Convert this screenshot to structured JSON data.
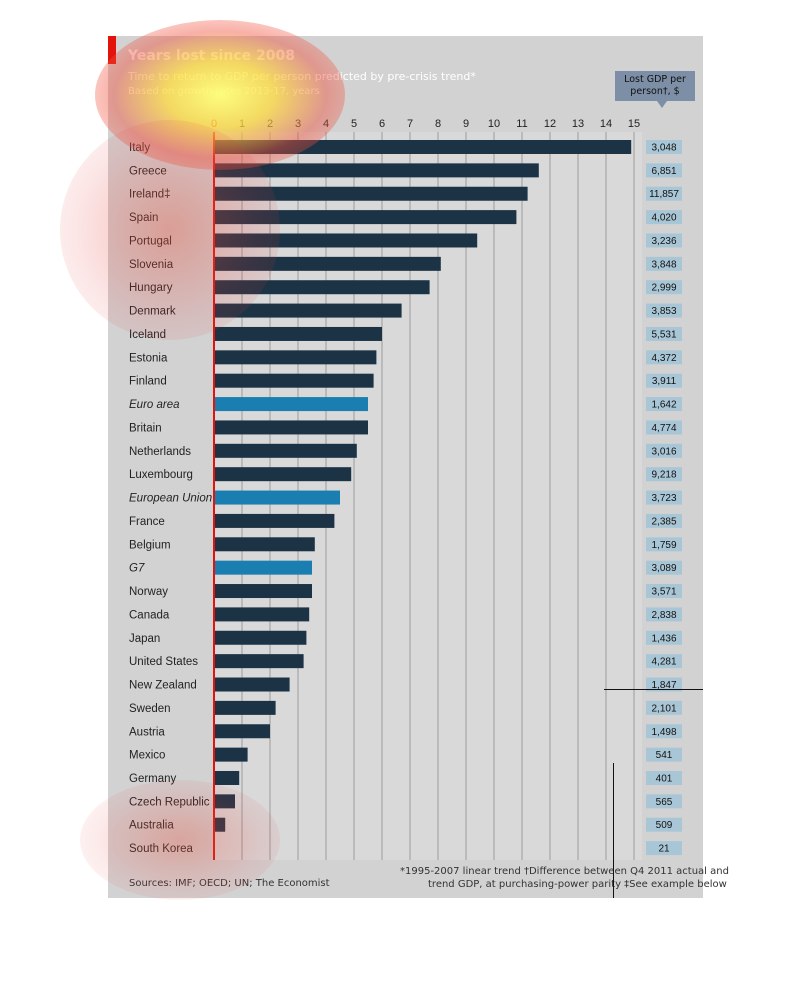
{
  "chart_data": {
    "type": "bar",
    "orientation": "horizontal",
    "title": "Years lost since 2008",
    "subtitle": "Time to return to GDP per person predicted by pre-crisis trend*",
    "subtitle2": "Based on growth rates 2013-17, years",
    "value_column_header": "Lost GDP per person†, $",
    "xlim": [
      0,
      15
    ],
    "xticks": [
      0,
      1,
      2,
      3,
      4,
      5,
      6,
      7,
      8,
      9,
      10,
      11,
      12,
      13,
      14,
      15
    ],
    "grid": true,
    "rows": [
      {
        "label": "Italy",
        "years": 14.9,
        "lost_gdp": "3,048",
        "group": false,
        "color": "#1c3345"
      },
      {
        "label": "Greece",
        "years": 11.6,
        "lost_gdp": "6,851",
        "group": false,
        "color": "#1c3345"
      },
      {
        "label": "Ireland‡",
        "years": 11.2,
        "lost_gdp": "11,857",
        "group": false,
        "color": "#1c3345"
      },
      {
        "label": "Spain",
        "years": 10.8,
        "lost_gdp": "4,020",
        "group": false,
        "color": "#1c3345"
      },
      {
        "label": "Portugal",
        "years": 9.4,
        "lost_gdp": "3,236",
        "group": false,
        "color": "#1c3345"
      },
      {
        "label": "Slovenia",
        "years": 8.1,
        "lost_gdp": "3,848",
        "group": false,
        "color": "#1c3345"
      },
      {
        "label": "Hungary",
        "years": 7.7,
        "lost_gdp": "2,999",
        "group": false,
        "color": "#1c3345"
      },
      {
        "label": "Denmark",
        "years": 6.7,
        "lost_gdp": "3,853",
        "group": false,
        "color": "#1c3345"
      },
      {
        "label": "Iceland",
        "years": 6.0,
        "lost_gdp": "5,531",
        "group": false,
        "color": "#1c3345"
      },
      {
        "label": "Estonia",
        "years": 5.8,
        "lost_gdp": "4,372",
        "group": false,
        "color": "#1c3345"
      },
      {
        "label": "Finland",
        "years": 5.7,
        "lost_gdp": "3,911",
        "group": false,
        "color": "#1c3345"
      },
      {
        "label": "Euro area",
        "years": 5.5,
        "lost_gdp": "1,642",
        "group": true,
        "color": "#1a7fb0"
      },
      {
        "label": "Britain",
        "years": 5.5,
        "lost_gdp": "4,774",
        "group": false,
        "color": "#1c3345"
      },
      {
        "label": "Netherlands",
        "years": 5.1,
        "lost_gdp": "3,016",
        "group": false,
        "color": "#1c3345"
      },
      {
        "label": "Luxembourg",
        "years": 4.9,
        "lost_gdp": "9,218",
        "group": false,
        "color": "#1c3345"
      },
      {
        "label": "European Union",
        "years": 4.5,
        "lost_gdp": "3,723",
        "group": true,
        "color": "#1a7fb0"
      },
      {
        "label": "France",
        "years": 4.3,
        "lost_gdp": "2,385",
        "group": false,
        "color": "#1c3345"
      },
      {
        "label": "Belgium",
        "years": 3.6,
        "lost_gdp": "1,759",
        "group": false,
        "color": "#1c3345"
      },
      {
        "label": "G7",
        "years": 3.5,
        "lost_gdp": "3,089",
        "group": true,
        "color": "#1a7fb0"
      },
      {
        "label": "Norway",
        "years": 3.5,
        "lost_gdp": "3,571",
        "group": false,
        "color": "#1c3345"
      },
      {
        "label": "Canada",
        "years": 3.4,
        "lost_gdp": "2,838",
        "group": false,
        "color": "#1c3345"
      },
      {
        "label": "Japan",
        "years": 3.3,
        "lost_gdp": "1,436",
        "group": false,
        "color": "#1c3345"
      },
      {
        "label": "United States",
        "years": 3.2,
        "lost_gdp": "4,281",
        "group": false,
        "color": "#1c3345"
      },
      {
        "label": "New Zealand",
        "years": 2.7,
        "lost_gdp": "1,847",
        "group": false,
        "color": "#1c3345"
      },
      {
        "label": "Sweden",
        "years": 2.2,
        "lost_gdp": "2,101",
        "group": false,
        "color": "#1c3345"
      },
      {
        "label": "Austria",
        "years": 2.0,
        "lost_gdp": "1,498",
        "group": false,
        "color": "#1c3345"
      },
      {
        "label": "Mexico",
        "years": 1.2,
        "lost_gdp": "541",
        "group": false,
        "color": "#1c3345"
      },
      {
        "label": "Germany",
        "years": 0.9,
        "lost_gdp": "401",
        "group": false,
        "color": "#1c3345"
      },
      {
        "label": "Czech Republic",
        "years": 0.75,
        "lost_gdp": "565",
        "group": false,
        "color": "#1c3345"
      },
      {
        "label": "Australia",
        "years": 0.4,
        "lost_gdp": "509",
        "group": false,
        "color": "#1c3345"
      },
      {
        "label": "South Korea",
        "years": 0,
        "lost_gdp": "21",
        "group": false,
        "color": "#1c3345"
      }
    ]
  },
  "footer": {
    "sources": "Sources: IMF; OECD; UN; The Economist",
    "note1": "*1995-2007 linear trend   †Difference between Q4 2011 actual and",
    "note2": "trend GDP, at purchasing-power parity   ‡See example below"
  },
  "colors": {
    "panel": "#d2d2d2",
    "country_bar": "#1c3345",
    "group_bar": "#1a7fb0",
    "zero_line": "#e3120b",
    "value_box": "#a9c6d6"
  }
}
